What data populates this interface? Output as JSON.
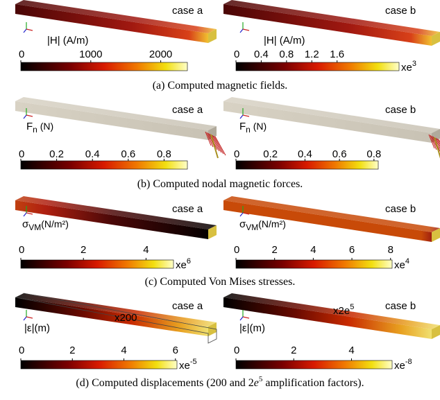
{
  "rows": [
    {
      "caption": "(a) Computed magnetic fields.",
      "panels": [
        {
          "case": "case a",
          "quantity": {
            "main": "|H| (A/m)"
          },
          "ticks": [
            "0",
            "1000",
            "2000"
          ]
        },
        {
          "case": "case b",
          "quantity": {
            "main": "|H| (A/m)"
          },
          "ticks": [
            "0",
            "0.4",
            "0.8",
            "1.2",
            "1.6"
          ],
          "exponent": {
            "base": "xe",
            "power": "3"
          }
        }
      ]
    },
    {
      "caption": "(b) Computed nodal magnetic forces.",
      "panels": [
        {
          "case": "case a",
          "quantity": {
            "main": "F",
            "sub": "n",
            "unit": " (N)"
          },
          "ticks": [
            "0",
            "0.2",
            "0.4",
            "0.6",
            "0.8"
          ]
        },
        {
          "case": "case b",
          "quantity": {
            "main": "F",
            "sub": "n",
            "unit": " (N)"
          },
          "ticks": [
            "0",
            "0.2",
            "0.4",
            "0.6",
            "0.8"
          ]
        }
      ]
    },
    {
      "caption": "(c) Computed Von Mises stresses.",
      "panels": [
        {
          "case": "case a",
          "quantity": {
            "main": "σ",
            "sub": "VM",
            "unit": "(N/m²)"
          },
          "ticks": [
            "0",
            "2",
            "4"
          ],
          "exponent": {
            "base": "xe",
            "power": "6"
          }
        },
        {
          "case": "case b",
          "quantity": {
            "main": "σ",
            "sub": "VM",
            "unit": "(N/m²)"
          },
          "ticks": [
            "0",
            "2",
            "4",
            "6",
            "8"
          ],
          "exponent": {
            "base": "xe",
            "power": "4"
          }
        }
      ]
    },
    {
      "caption": {
        "before": "(d) Computed displacements (200 and 2",
        "e": "e",
        "power": "5",
        "after": " amplification factors)."
      },
      "panels": [
        {
          "case": "case a",
          "quantity": {
            "main": "|ε|(m)"
          },
          "ticks": [
            "0",
            "2",
            "4",
            "6"
          ],
          "exponent": {
            "base": "xe",
            "power": "-5"
          },
          "amplification": {
            "base": "x200"
          }
        },
        {
          "case": "case b",
          "quantity": {
            "main": "|ε|(m)"
          },
          "ticks": [
            "0",
            "2",
            "4"
          ],
          "exponent": {
            "base": "xe",
            "power": "-8"
          },
          "amplification": {
            "base": "x2e",
            "power": "5"
          }
        }
      ]
    }
  ]
}
